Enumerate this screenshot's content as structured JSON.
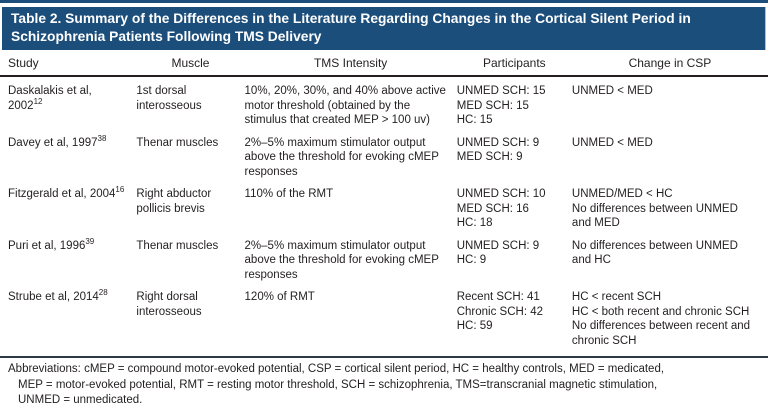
{
  "caption": {
    "line1": "Table 2. Summary of the Differences in the Literature Regarding Changes in the Cortical Silent Period in",
    "line2": "Schizophrenia Patients Following TMS Delivery"
  },
  "table": {
    "headers": [
      "Study",
      "Muscle",
      "TMS Intensity",
      "Participants",
      "Change in CSP"
    ],
    "rows": [
      {
        "study": [
          {
            "text": "Daskalakis et al,"
          },
          {
            "text": "2002",
            "sup": "12"
          }
        ],
        "muscle": "1st dorsal interosseous",
        "tms_intensity": "10%, 20%, 30%, and 40% above active motor threshold (obtained by the stimulus that created MEP > 100 uv)",
        "participants": [
          "UNMED SCH: 15",
          "MED SCH: 15",
          "HC: 15"
        ],
        "change_in_csp": [
          "UNMED < MED"
        ]
      },
      {
        "study": [
          {
            "text": "Davey et al, 1997",
            "sup": "38"
          }
        ],
        "muscle": "Thenar muscles",
        "tms_intensity": "2%–5% maximum stimulator output above the threshold for evoking cMEP responses",
        "participants": [
          "UNMED SCH: 9",
          "MED SCH: 9"
        ],
        "change_in_csp": [
          "UNMED < MED"
        ]
      },
      {
        "study": [
          {
            "text": "Fitzgerald et al, 2004",
            "sup": "16"
          }
        ],
        "muscle": "Right abductor pollicis brevis",
        "tms_intensity": "110% of the RMT",
        "participants": [
          "UNMED SCH: 10",
          "MED SCH: 16",
          "HC: 18"
        ],
        "change_in_csp": [
          "UNMED/MED < HC",
          "No differences between UNMED and MED"
        ]
      },
      {
        "study": [
          {
            "text": "Puri et al, 1996",
            "sup": "39"
          }
        ],
        "muscle": "Thenar muscles",
        "tms_intensity": "2%–5% maximum stimulator output above the threshold for evoking cMEP responses",
        "participants": [
          "UNMED SCH: 9",
          "HC: 9"
        ],
        "change_in_csp": [
          "No differences between UNMED and HC"
        ]
      },
      {
        "study": [
          {
            "text": "Strube et al, 2014",
            "sup": "28"
          }
        ],
        "muscle": "Right dorsal interosseous",
        "tms_intensity": "120% of RMT",
        "participants": [
          "Recent SCH: 41",
          "Chronic SCH: 42",
          "HC: 59"
        ],
        "change_in_csp": [
          "HC < recent SCH",
          "HC < both recent and chronic SCH",
          "No differences between recent and chronic SCH"
        ]
      }
    ]
  },
  "footnote": {
    "lines": [
      "Abbreviations: cMEP = compound motor-evoked potential, CSP = cortical silent period, HC = healthy controls, MED = medicated,",
      "MEP = motor-evoked potential, RMT = resting motor threshold, SCH = schizophrenia, TMS=transcranial magnetic stimulation,",
      "UNMED = unmedicated."
    ]
  },
  "colors": {
    "banner_navy": "#1c4e7b",
    "rule_black": "#231f20",
    "bottom_rule_blue": "#4d87a6"
  }
}
